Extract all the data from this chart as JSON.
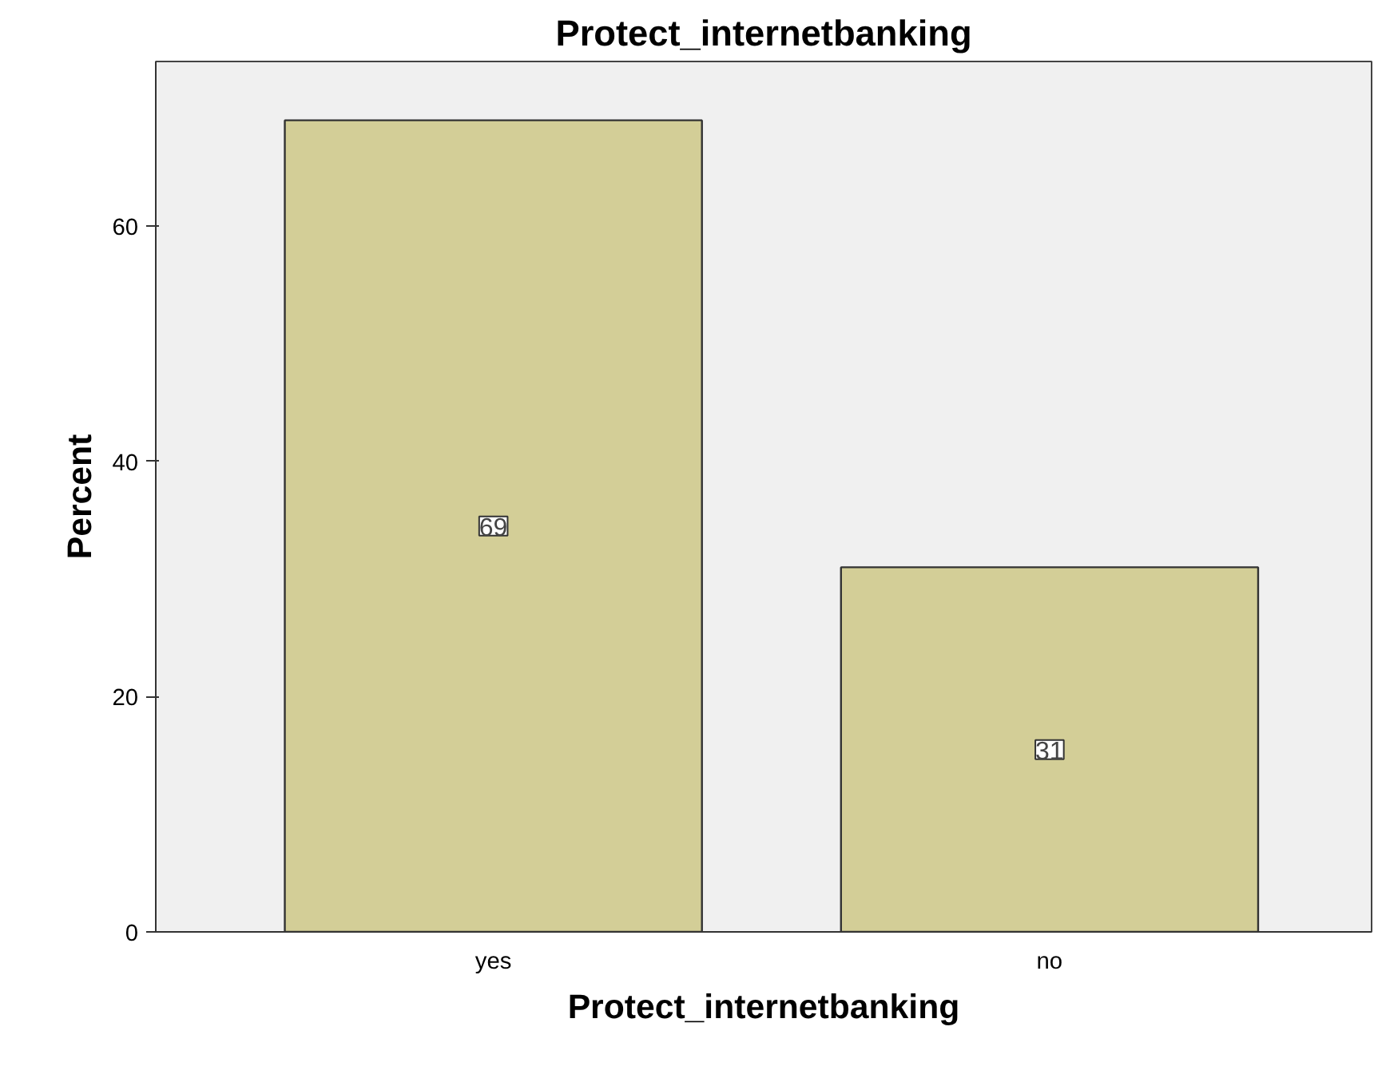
{
  "chart_data": {
    "type": "bar",
    "title": "Protect_internetbanking",
    "xlabel": "Protect_internetbanking",
    "ylabel": "Percent",
    "categories": [
      "yes",
      "no"
    ],
    "values": [
      69,
      31
    ],
    "color": "#d3ce97",
    "ylim": [
      0,
      74
    ],
    "yticks": [
      0,
      20,
      40,
      60
    ],
    "grid": false,
    "data_labels": true
  }
}
